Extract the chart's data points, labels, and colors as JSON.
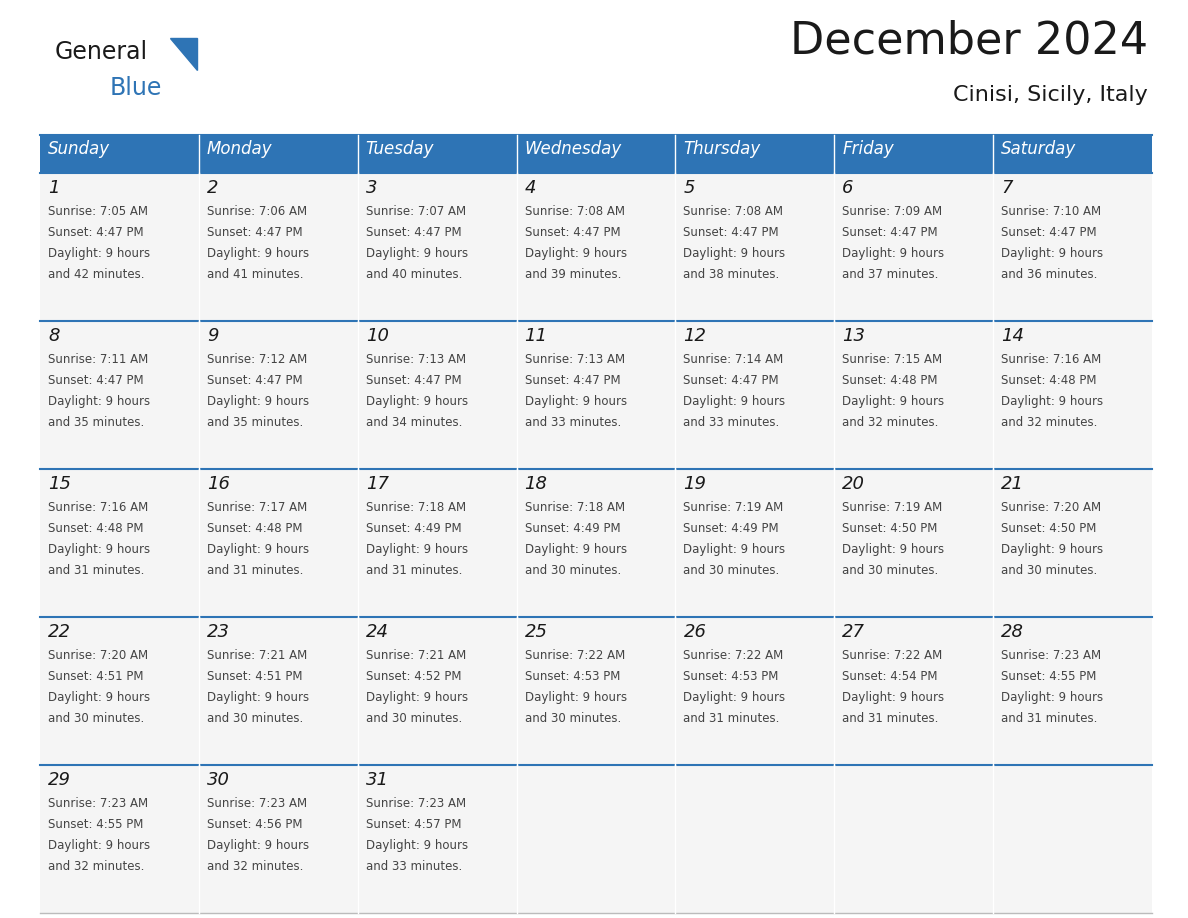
{
  "title": "December 2024",
  "subtitle": "Cinisi, Sicily, Italy",
  "header_color": "#2E74B5",
  "header_text_color": "#FFFFFF",
  "cell_bg_color": "#F5F5F5",
  "grid_line_color": "#BBBBBB",
  "separator_line_color": "#2E74B5",
  "day_names": [
    "Sunday",
    "Monday",
    "Tuesday",
    "Wednesday",
    "Thursday",
    "Friday",
    "Saturday"
  ],
  "calendar_data": [
    [
      {
        "day": 1,
        "sunrise": "7:05 AM",
        "sunset": "4:47 PM",
        "daylight": "9 hours and 42 minutes"
      },
      {
        "day": 2,
        "sunrise": "7:06 AM",
        "sunset": "4:47 PM",
        "daylight": "9 hours and 41 minutes"
      },
      {
        "day": 3,
        "sunrise": "7:07 AM",
        "sunset": "4:47 PM",
        "daylight": "9 hours and 40 minutes"
      },
      {
        "day": 4,
        "sunrise": "7:08 AM",
        "sunset": "4:47 PM",
        "daylight": "9 hours and 39 minutes"
      },
      {
        "day": 5,
        "sunrise": "7:08 AM",
        "sunset": "4:47 PM",
        "daylight": "9 hours and 38 minutes"
      },
      {
        "day": 6,
        "sunrise": "7:09 AM",
        "sunset": "4:47 PM",
        "daylight": "9 hours and 37 minutes"
      },
      {
        "day": 7,
        "sunrise": "7:10 AM",
        "sunset": "4:47 PM",
        "daylight": "9 hours and 36 minutes"
      }
    ],
    [
      {
        "day": 8,
        "sunrise": "7:11 AM",
        "sunset": "4:47 PM",
        "daylight": "9 hours and 35 minutes"
      },
      {
        "day": 9,
        "sunrise": "7:12 AM",
        "sunset": "4:47 PM",
        "daylight": "9 hours and 35 minutes"
      },
      {
        "day": 10,
        "sunrise": "7:13 AM",
        "sunset": "4:47 PM",
        "daylight": "9 hours and 34 minutes"
      },
      {
        "day": 11,
        "sunrise": "7:13 AM",
        "sunset": "4:47 PM",
        "daylight": "9 hours and 33 minutes"
      },
      {
        "day": 12,
        "sunrise": "7:14 AM",
        "sunset": "4:47 PM",
        "daylight": "9 hours and 33 minutes"
      },
      {
        "day": 13,
        "sunrise": "7:15 AM",
        "sunset": "4:48 PM",
        "daylight": "9 hours and 32 minutes"
      },
      {
        "day": 14,
        "sunrise": "7:16 AM",
        "sunset": "4:48 PM",
        "daylight": "9 hours and 32 minutes"
      }
    ],
    [
      {
        "day": 15,
        "sunrise": "7:16 AM",
        "sunset": "4:48 PM",
        "daylight": "9 hours and 31 minutes"
      },
      {
        "day": 16,
        "sunrise": "7:17 AM",
        "sunset": "4:48 PM",
        "daylight": "9 hours and 31 minutes"
      },
      {
        "day": 17,
        "sunrise": "7:18 AM",
        "sunset": "4:49 PM",
        "daylight": "9 hours and 31 minutes"
      },
      {
        "day": 18,
        "sunrise": "7:18 AM",
        "sunset": "4:49 PM",
        "daylight": "9 hours and 30 minutes"
      },
      {
        "day": 19,
        "sunrise": "7:19 AM",
        "sunset": "4:49 PM",
        "daylight": "9 hours and 30 minutes"
      },
      {
        "day": 20,
        "sunrise": "7:19 AM",
        "sunset": "4:50 PM",
        "daylight": "9 hours and 30 minutes"
      },
      {
        "day": 21,
        "sunrise": "7:20 AM",
        "sunset": "4:50 PM",
        "daylight": "9 hours and 30 minutes"
      }
    ],
    [
      {
        "day": 22,
        "sunrise": "7:20 AM",
        "sunset": "4:51 PM",
        "daylight": "9 hours and 30 minutes"
      },
      {
        "day": 23,
        "sunrise": "7:21 AM",
        "sunset": "4:51 PM",
        "daylight": "9 hours and 30 minutes"
      },
      {
        "day": 24,
        "sunrise": "7:21 AM",
        "sunset": "4:52 PM",
        "daylight": "9 hours and 30 minutes"
      },
      {
        "day": 25,
        "sunrise": "7:22 AM",
        "sunset": "4:53 PM",
        "daylight": "9 hours and 30 minutes"
      },
      {
        "day": 26,
        "sunrise": "7:22 AM",
        "sunset": "4:53 PM",
        "daylight": "9 hours and 31 minutes"
      },
      {
        "day": 27,
        "sunrise": "7:22 AM",
        "sunset": "4:54 PM",
        "daylight": "9 hours and 31 minutes"
      },
      {
        "day": 28,
        "sunrise": "7:23 AM",
        "sunset": "4:55 PM",
        "daylight": "9 hours and 31 minutes"
      }
    ],
    [
      {
        "day": 29,
        "sunrise": "7:23 AM",
        "sunset": "4:55 PM",
        "daylight": "9 hours and 32 minutes"
      },
      {
        "day": 30,
        "sunrise": "7:23 AM",
        "sunset": "4:56 PM",
        "daylight": "9 hours and 32 minutes"
      },
      {
        "day": 31,
        "sunrise": "7:23 AM",
        "sunset": "4:57 PM",
        "daylight": "9 hours and 33 minutes"
      },
      null,
      null,
      null,
      null
    ]
  ],
  "title_fontsize": 32,
  "subtitle_fontsize": 16,
  "dayname_fontsize": 12,
  "daynum_fontsize": 13,
  "cell_text_fontsize": 8.5,
  "logo_general_fontsize": 17,
  "logo_blue_fontsize": 17
}
